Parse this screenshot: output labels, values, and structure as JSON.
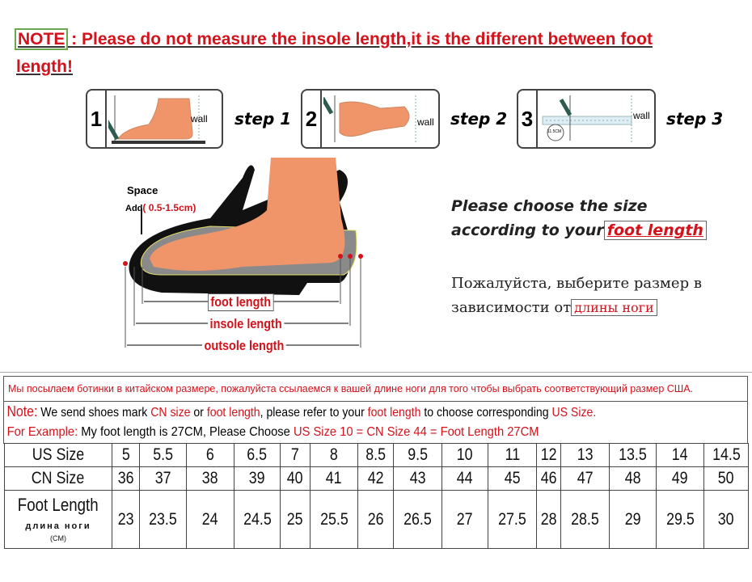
{
  "note": {
    "tag": "NOTE",
    "colon": " : ",
    "text": "Please do not measure the insole length,it is the different between foot",
    "text2": "length!"
  },
  "steps": [
    {
      "number": "1",
      "label": "step 1",
      "wall": "wall"
    },
    {
      "number": "2",
      "label": "step 2",
      "wall": "wall"
    },
    {
      "number": "3",
      "label": "step 3",
      "wall": "wall",
      "ruler_badge": "11.5CM"
    }
  ],
  "diagram": {
    "space": "Space",
    "add": "Add",
    "add_range": "( 0.5-1.5cm)",
    "foot_length": "foot length",
    "insole_length": "insole length",
    "outsole_length": "outsole length"
  },
  "choose": {
    "line1": "Please choose the size",
    "line2": "according to your",
    "highlight": "foot length"
  },
  "choose_ru": {
    "line1": "Пожалуйста, выберите размер в",
    "line2": "зависимости от",
    "highlight": "длины ноги"
  },
  "info": {
    "ru": "Мы посылаем ботинки в китайском размере, пожалуйста ссылаемся к вашей длине ноги для того чтобы выбрать соответствующий размер США.",
    "note_label": "Note:",
    "note_a": " We send shoes mark ",
    "cn_size": "CN size",
    "note_b": " or ",
    "foot_length": "foot length",
    "note_c": ", please refer to your ",
    "foot_length2": "foot length",
    "note_d": " to choose corresponding ",
    "us_size": "US Size.",
    "example_label": "For Example:",
    "example_text": " My foot length is 27CM, Please Choose ",
    "example_red": "US Size 10 = CN Size 44 = Foot Length 27CM"
  },
  "table": {
    "us_label": "US Size",
    "cn_label": "CN Size",
    "foot_label": "Foot Length",
    "foot_label_ru": "длина ноги",
    "foot_unit": "(CM)",
    "us": [
      "5",
      "5.5",
      "6",
      "6.5",
      "7",
      "8",
      "8.5",
      "9.5",
      "10",
      "11",
      "12",
      "13",
      "13.5",
      "14",
      "14.5"
    ],
    "cn": [
      "36",
      "37",
      "38",
      "39",
      "40",
      "41",
      "42",
      "43",
      "44",
      "45",
      "46",
      "47",
      "48",
      "49",
      "50"
    ],
    "foot": [
      "23",
      "23.5",
      "24",
      "24.5",
      "25",
      "25.5",
      "26",
      "26.5",
      "27",
      "27.5",
      "28",
      "28.5",
      "29",
      "29.5",
      "30"
    ]
  },
  "colors": {
    "red": "#d3121b",
    "foot": "#f0956a",
    "sole": "#111111",
    "insole": "#8a8a8a"
  }
}
